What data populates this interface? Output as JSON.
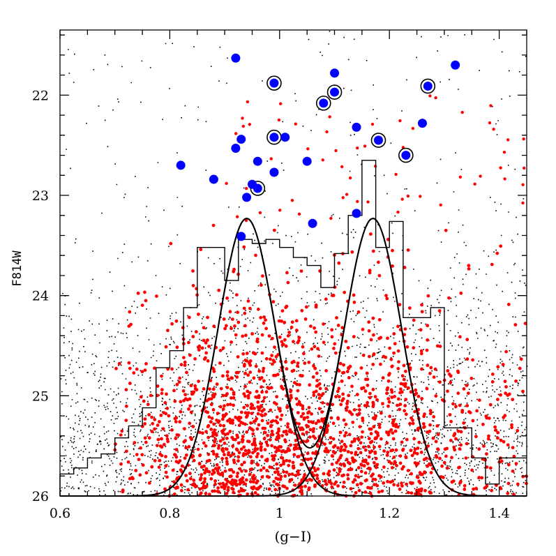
{
  "chart_data": {
    "type": "scatter",
    "title": "",
    "xlabel": "(g−I)",
    "ylabel": "F814W",
    "xlim": [
      0.6,
      1.45
    ],
    "ylim": [
      21.35,
      26.0
    ],
    "y_inverted": true,
    "x_ticks": [
      0.6,
      0.8,
      1.0,
      1.2,
      1.4
    ],
    "x_tick_labels": [
      "0.6",
      "0.8",
      "1",
      "1.2",
      "1.4"
    ],
    "y_ticks": [
      22,
      23,
      24,
      25,
      26
    ],
    "y_tick_labels": [
      "22",
      "23",
      "24",
      "25",
      "26"
    ],
    "grid": false,
    "legend": "none",
    "colors": {
      "frame": "#000000",
      "black_sources": "#000000",
      "red_sources": "#ff0000",
      "blue_sources": "#0000ff"
    },
    "series": [
      {
        "marker": "large blue circle",
        "color": "#0000ff",
        "points": [
          [
            0.92,
            21.63
          ],
          [
            0.99,
            21.88
          ],
          [
            1.1,
            21.78
          ],
          [
            1.1,
            21.97
          ],
          [
            1.08,
            22.08
          ],
          [
            1.27,
            21.91
          ],
          [
            1.32,
            21.7
          ],
          [
            1.14,
            22.32
          ],
          [
            1.18,
            22.45
          ],
          [
            1.26,
            22.28
          ],
          [
            0.99,
            22.42
          ],
          [
            1.01,
            22.42
          ],
          [
            0.93,
            22.44
          ],
          [
            0.92,
            22.53
          ],
          [
            0.96,
            22.66
          ],
          [
            1.05,
            22.66
          ],
          [
            0.82,
            22.7
          ],
          [
            0.99,
            22.77
          ],
          [
            1.23,
            22.6
          ],
          [
            0.88,
            22.84
          ],
          [
            0.95,
            22.89
          ],
          [
            0.96,
            22.93
          ],
          [
            0.94,
            23.02
          ],
          [
            1.14,
            23.18
          ],
          [
            1.06,
            23.28
          ],
          [
            0.93,
            23.41
          ]
        ],
        "ringed_points": [
          [
            0.99,
            21.88
          ],
          [
            1.1,
            21.97
          ],
          [
            1.08,
            22.08
          ],
          [
            1.27,
            21.91
          ],
          [
            1.18,
            22.45
          ],
          [
            0.99,
            22.42
          ],
          [
            1.23,
            22.6
          ],
          [
            0.96,
            22.93
          ]
        ]
      },
      {
        "marker": "small red dot",
        "color": "#ff0000",
        "population_peaks_x": [
          0.94,
          1.17
        ],
        "density": "dense below F814W 23.2, brightest at 25.3–26"
      },
      {
        "marker": "tiny black dot",
        "color": "#000000",
        "density": "spread across the full panel, densest at F814W > 24.5"
      }
    ],
    "histogram": {
      "bin_width": 0.025,
      "bin_centers": [
        0.6125,
        0.6375,
        0.6625,
        0.6875,
        0.7125,
        0.7375,
        0.7625,
        0.7875,
        0.8125,
        0.8375,
        0.8625,
        0.8875,
        0.9125,
        0.9375,
        0.9625,
        0.9875,
        1.0125,
        1.0375,
        1.0625,
        1.0875,
        1.1125,
        1.1375,
        1.1625,
        1.1875,
        1.2125,
        1.2375,
        1.2625,
        1.2875,
        1.3125,
        1.3375,
        1.3625,
        1.3875,
        1.4125,
        1.4375
      ],
      "level_f814w": [
        25.78,
        25.72,
        25.62,
        25.58,
        25.42,
        25.3,
        25.12,
        24.72,
        24.55,
        24.12,
        23.52,
        23.52,
        23.85,
        23.44,
        23.48,
        23.44,
        23.52,
        23.62,
        23.7,
        23.92,
        23.58,
        23.2,
        22.65,
        23.52,
        23.26,
        24.22,
        24.22,
        24.12,
        25.32,
        25.32,
        25.62,
        25.88,
        25.62,
        25.62
      ]
    },
    "curves": [
      {
        "name": "",
        "kind": "gaussian",
        "center": 0.94,
        "sigma": 0.052,
        "peak_f814w": 23.23,
        "base_f814w": 26.0
      },
      {
        "name": "",
        "kind": "gaussian",
        "center": 1.17,
        "sigma": 0.052,
        "peak_f814w": 23.23,
        "base_f814w": 26.0
      },
      {
        "name": "",
        "kind": "sum of the two gaussians"
      }
    ]
  }
}
